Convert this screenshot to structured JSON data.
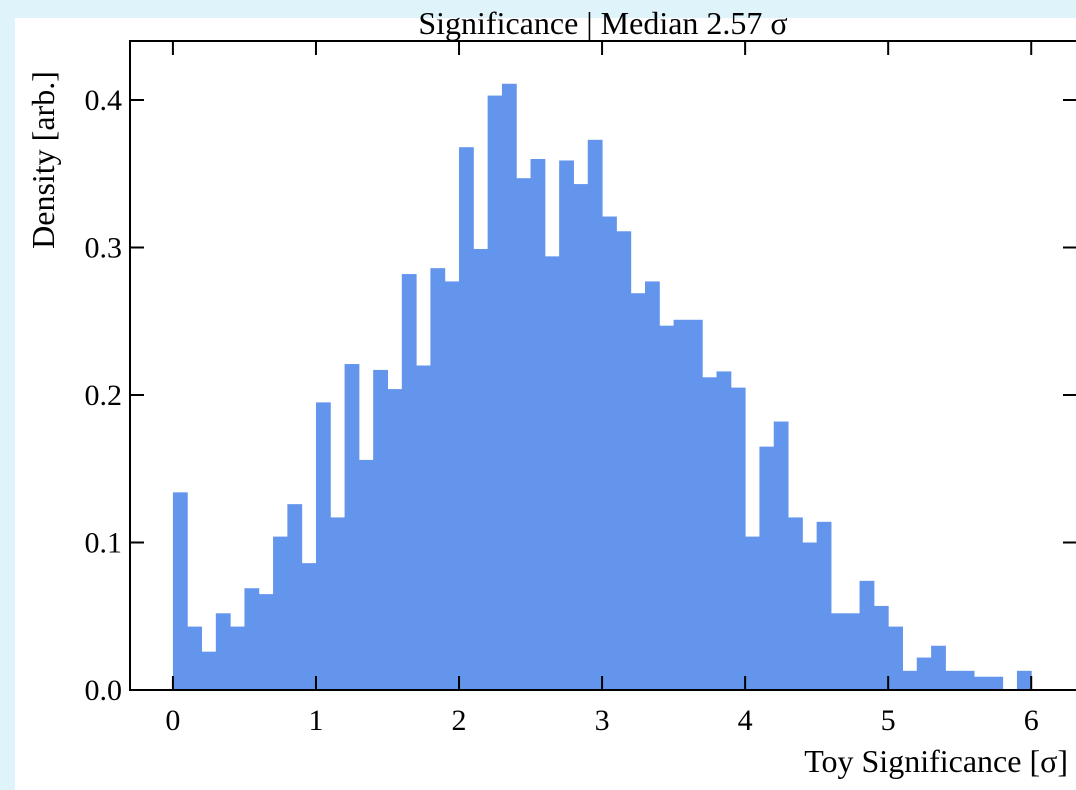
{
  "chart_data": {
    "type": "histogram",
    "title": "Significance | Median 2.57 σ",
    "x_label": "Toy Significance [σ]",
    "y_label": "Density [arb.]",
    "color": "#6495ed",
    "bins": [
      0.0,
      0.1,
      0.2,
      0.3,
      0.4,
      0.5,
      0.6,
      0.7,
      0.8,
      0.9,
      1.0,
      1.1,
      1.2,
      1.3,
      1.4,
      1.5,
      1.6,
      1.7,
      1.8,
      1.9,
      2.0,
      2.1,
      2.2,
      2.3,
      2.4,
      2.5,
      2.6,
      2.7,
      2.8,
      2.9,
      3.0,
      3.1,
      3.2,
      3.3,
      3.4,
      3.5,
      3.6,
      3.7,
      3.8,
      3.9,
      4.0,
      4.1,
      4.2,
      4.3,
      4.4,
      4.5,
      4.6,
      4.7,
      4.8,
      4.9,
      5.0,
      5.1,
      5.2,
      5.3,
      5.4,
      5.5,
      5.6,
      5.7,
      5.8,
      5.9,
      6.0
    ],
    "values": [
      0.134,
      0.043,
      0.026,
      0.052,
      0.043,
      0.069,
      0.065,
      0.104,
      0.126,
      0.086,
      0.195,
      0.117,
      0.221,
      0.156,
      0.217,
      0.204,
      0.282,
      0.22,
      0.286,
      0.277,
      0.368,
      0.299,
      0.403,
      0.411,
      0.347,
      0.36,
      0.294,
      0.359,
      0.343,
      0.373,
      0.321,
      0.311,
      0.269,
      0.277,
      0.247,
      0.251,
      0.251,
      0.212,
      0.216,
      0.205,
      0.104,
      0.165,
      0.182,
      0.117,
      0.1,
      0.114,
      0.052,
      0.052,
      0.074,
      0.057,
      0.043,
      0.013,
      0.022,
      0.03,
      0.013,
      0.013,
      0.009,
      0.009,
      0,
      0.013
    ],
    "xlim": [
      -0.3,
      6.32
    ],
    "ylim": [
      0,
      0.44
    ],
    "xticks": [
      0,
      1,
      2,
      3,
      4,
      5,
      6
    ],
    "yticks": [
      {
        "value": 0,
        "label": "0.0"
      },
      {
        "value": 0.1,
        "label": "0.1"
      },
      {
        "value": 0.2,
        "label": "0.2"
      },
      {
        "value": 0.3,
        "label": "0.3"
      },
      {
        "value": 0.4,
        "label": "0.4"
      }
    ]
  }
}
